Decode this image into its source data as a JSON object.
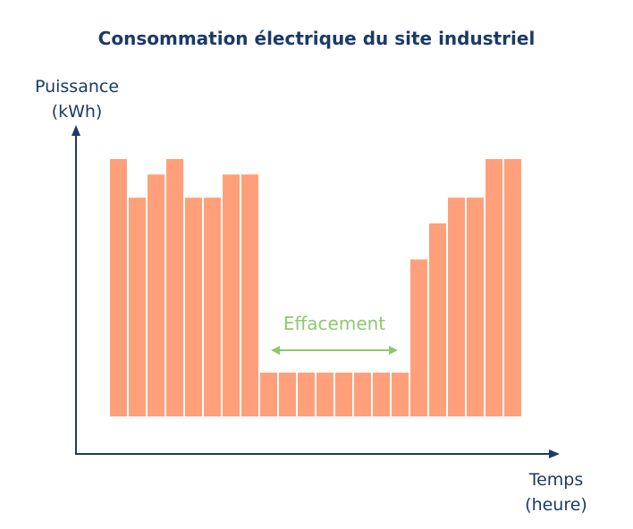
{
  "chart_data": {
    "type": "bar",
    "title": "Consommation électrique du site industriel",
    "ylabel": [
      "Puissance",
      "(kWh)"
    ],
    "xlabel": [
      "Temps",
      "(heure)"
    ],
    "values": [
      100,
      85,
      94,
      100,
      85,
      85,
      94,
      94,
      17,
      17,
      17,
      17,
      17,
      17,
      17,
      17,
      61,
      75,
      85,
      85,
      100,
      100
    ],
    "ylim": [
      0,
      100
    ],
    "grid": false,
    "annotation": {
      "text": "Effacement",
      "from_bar": 9,
      "to_bar": 16
    },
    "colors": {
      "bar": "#ffa07a",
      "axis": "#1b3a66",
      "annotation": "#8dc96a",
      "title": "#1b3a66"
    }
  }
}
